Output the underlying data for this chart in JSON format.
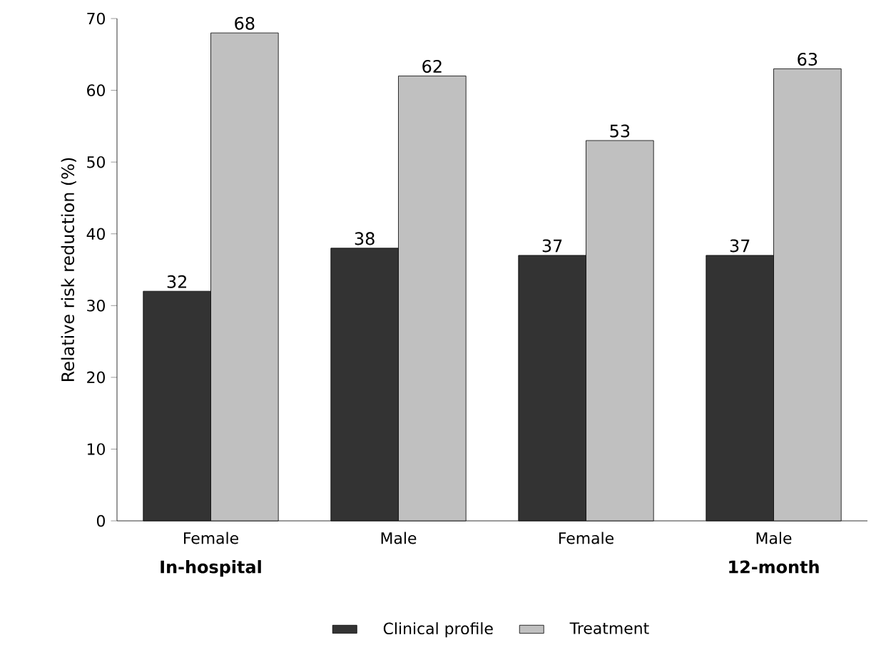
{
  "chart_data": {
    "type": "bar",
    "ylabel": "Relative risk reduction (%)",
    "categories": [
      "Female",
      "Male",
      "Female",
      "Male"
    ],
    "series": [
      {
        "name": "Clinical profile",
        "color": "#333333",
        "values": [
          32,
          38,
          37,
          37
        ]
      },
      {
        "name": "Treatment",
        "color": "#c0c0c0",
        "values": [
          68,
          62,
          53,
          63
        ]
      }
    ],
    "annotations": [
      "In-hospital",
      "12-month"
    ],
    "ylim": [
      0,
      70
    ],
    "yticks": [
      0,
      10,
      20,
      30,
      40,
      50,
      60,
      70
    ],
    "data_labels": true,
    "grid": false,
    "legend": "bottom"
  }
}
